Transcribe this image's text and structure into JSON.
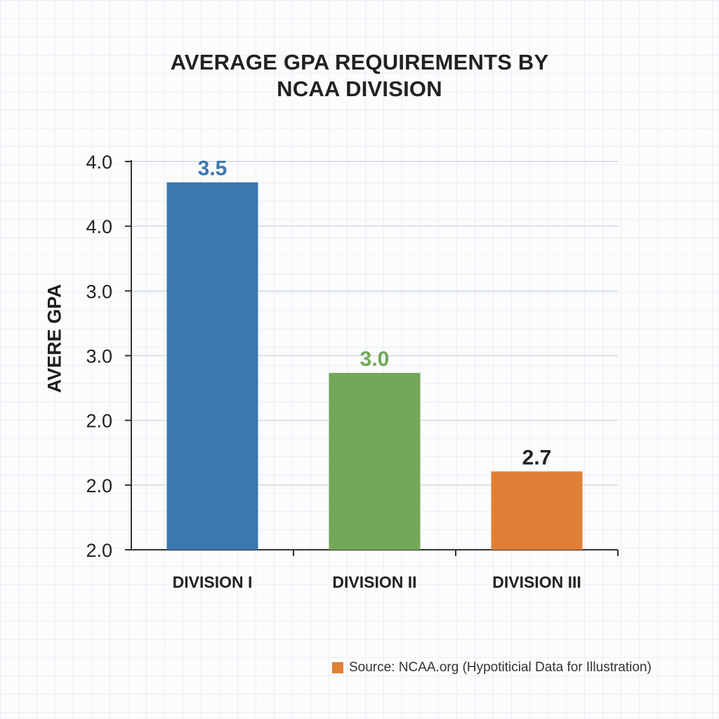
{
  "chart_data": {
    "type": "bar",
    "title_lines": [
      "AVERAGE GPA REQUIREMENTS BY",
      "NCAA DIVISION"
    ],
    "ylabel": "AVERE GPA",
    "xlabel": "",
    "categories": [
      "DIVISION I",
      "DIVISION II",
      "DIVISION III"
    ],
    "values": [
      3.5,
      3.0,
      2.7
    ],
    "value_labels": [
      "3.5",
      "3.0",
      "2.7"
    ],
    "colors": [
      "#3a78ae",
      "#72a857",
      "#e07f36"
    ],
    "label_colors": [
      "#3a78ae",
      "#72a857",
      "#222222"
    ],
    "y_tick_labels": [
      "4.0",
      "4.0",
      "3.0",
      "3.0",
      "2.0",
      "2.0",
      "2.0"
    ],
    "bar_fill_fraction": [
      0.9464,
      0.4555,
      0.2018
    ],
    "grid": true,
    "legend_placement": "bottom-right"
  },
  "source": {
    "text": "Source: NCAA.org (Hypotiticial Data for Illustration)",
    "swatch_color": "#e07f36"
  }
}
